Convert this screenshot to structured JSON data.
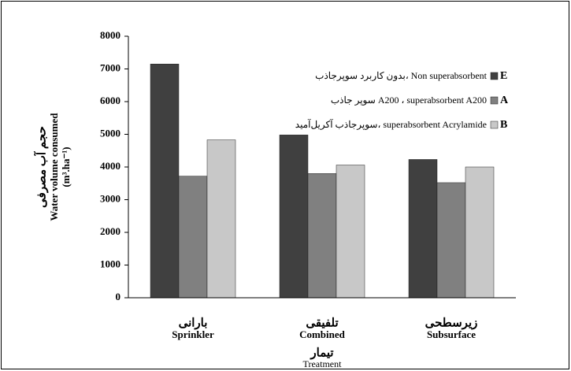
{
  "chart_data": {
    "type": "bar",
    "y_label": [
      "حجم آب مصرفی",
      "Water volume consumed",
      "(m³.ha⁻¹)"
    ],
    "x_label": [
      "تیمار",
      "Treatment"
    ],
    "categories": [
      "Sprinkler",
      "Combined",
      "Subsurface"
    ],
    "categories_fa": [
      "بارانی",
      "تلفیقی",
      "زیرسطحی"
    ],
    "series": [
      {
        "name": "E",
        "description": "بدون کاربرد سوپرجاذب، Non superabsorbent",
        "color": "#404040",
        "values": [
          7150,
          4980,
          4230
        ]
      },
      {
        "name": "A",
        "description": "سوپر جاذب A200 ، superabsorbent A200",
        "color": "#808080",
        "values": [
          3720,
          3800,
          3520
        ]
      },
      {
        "name": "B",
        "description": "سوپرجاذب آکریل‌آمید، superabsorbent Acrylamide",
        "color": "#c8c8c8",
        "values": [
          4830,
          4060,
          4000
        ]
      }
    ],
    "ylim": [
      0,
      8000
    ],
    "yticks": [
      0,
      1000,
      2000,
      3000,
      4000,
      5000,
      6000,
      7000,
      8000
    ],
    "legend": "upper right"
  }
}
